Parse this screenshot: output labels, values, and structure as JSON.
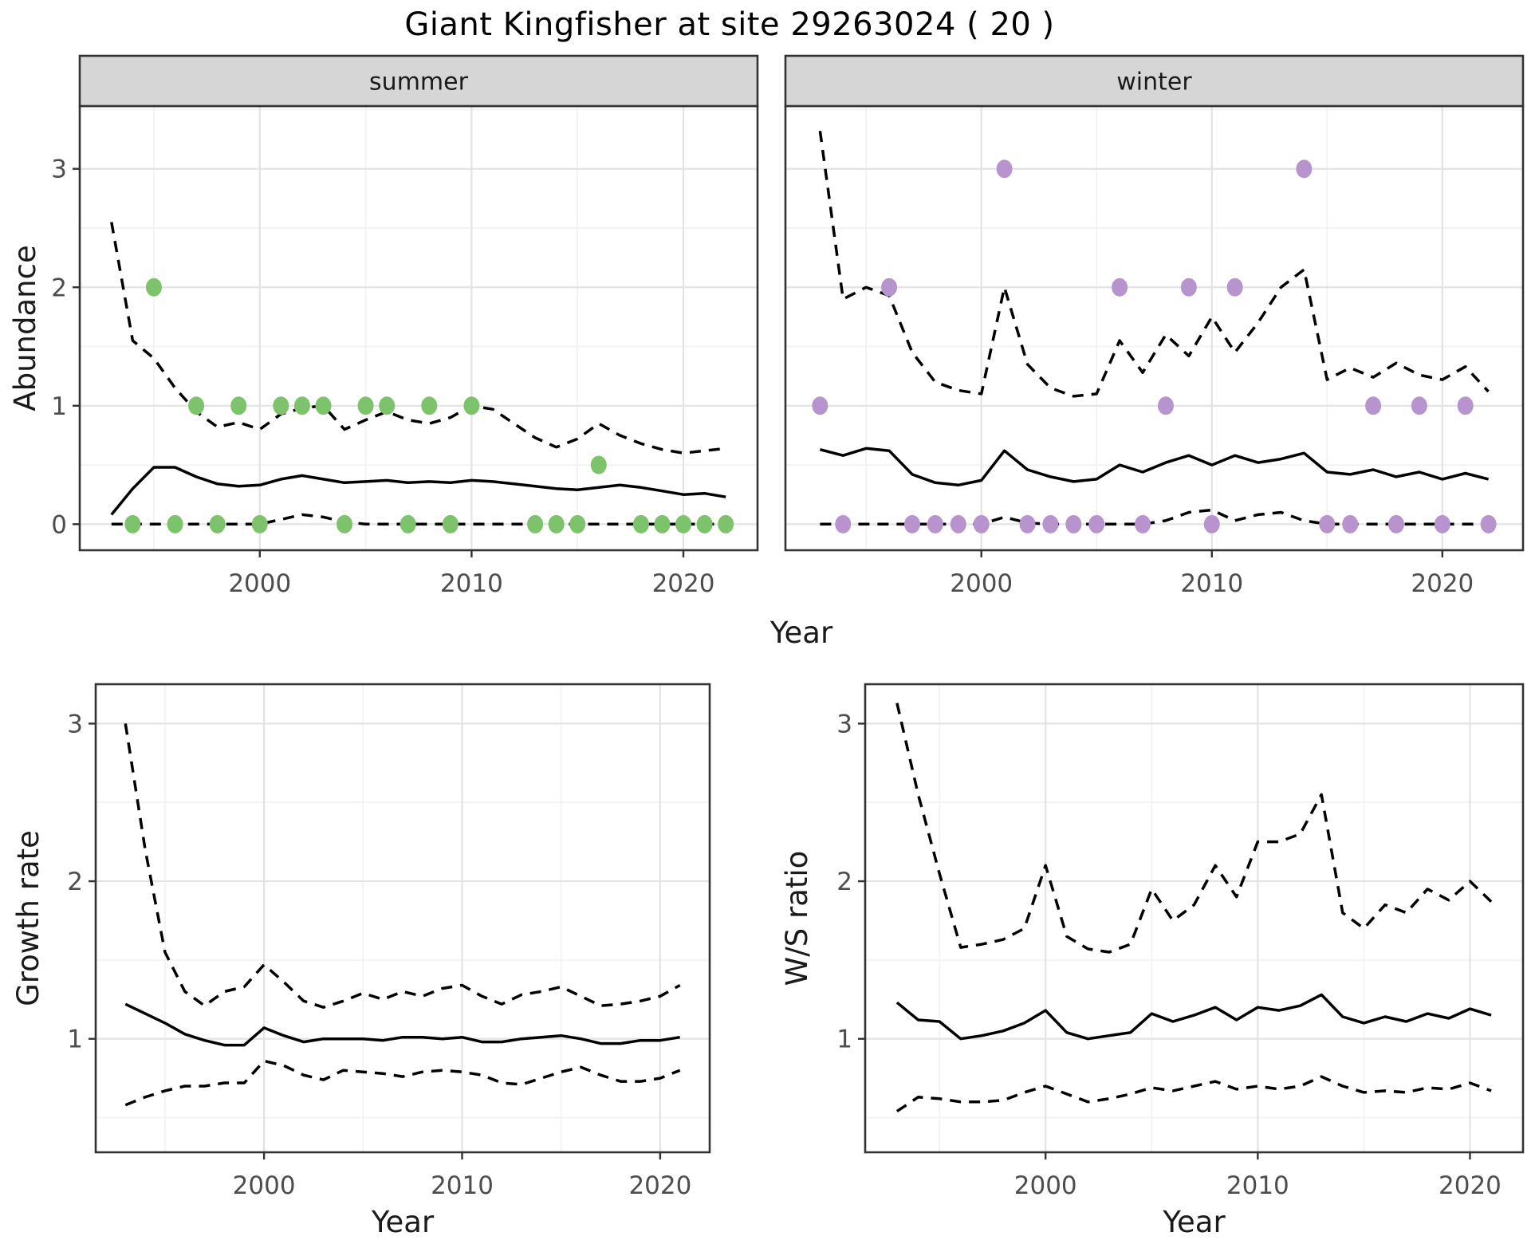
{
  "title": "Giant Kingfisher at site 29263024 ( 20 )",
  "colors": {
    "summer_point": "#7cc36b",
    "winter_point": "#b894cf",
    "line": "#000000",
    "grid_major": "#e3e3e3",
    "grid_minor": "#f1f1f1",
    "panel_border": "#333333",
    "strip_bg": "#d6d6d6",
    "tick_label": "#4d4d4d",
    "axis_title": "#1a1a1a",
    "panel_bg": "#ffffff"
  },
  "chart_data": [
    {
      "type": "line",
      "facet": "summer",
      "xlabel": "Year",
      "ylabel": "Abundance",
      "xlim": [
        1991.5,
        2023.5
      ],
      "ylim": [
        -0.22,
        3.53
      ],
      "xticks": [
        2000,
        2010,
        2020
      ],
      "xticks_minor": [
        1995,
        2005,
        2015
      ],
      "yticks": [
        0,
        1,
        2,
        3
      ],
      "yticks_minor": [
        0.5,
        1.5,
        2.5,
        3.5
      ],
      "grid": true,
      "legend": "none",
      "years": [
        1993,
        1994,
        1995,
        1996,
        1997,
        1998,
        1999,
        2000,
        2001,
        2002,
        2003,
        2004,
        2005,
        2006,
        2007,
        2008,
        2009,
        2010,
        2011,
        2012,
        2013,
        2014,
        2015,
        2016,
        2017,
        2018,
        2019,
        2020,
        2021,
        2022
      ],
      "series": [
        {
          "name": "mean_abundance",
          "style": "solid",
          "values": [
            0.08,
            0.3,
            0.48,
            0.48,
            0.4,
            0.34,
            0.32,
            0.33,
            0.38,
            0.41,
            0.38,
            0.35,
            0.36,
            0.37,
            0.35,
            0.36,
            0.35,
            0.37,
            0.36,
            0.34,
            0.32,
            0.3,
            0.29,
            0.31,
            0.33,
            0.31,
            0.28,
            0.25,
            0.26,
            0.23
          ]
        },
        {
          "name": "upper_credible_interval",
          "style": "dashed",
          "values": [
            2.55,
            1.55,
            1.4,
            1.15,
            0.95,
            0.82,
            0.86,
            0.8,
            0.93,
            0.98,
            1.0,
            0.8,
            0.88,
            0.95,
            0.88,
            0.85,
            0.9,
            1.0,
            0.97,
            0.85,
            0.73,
            0.65,
            0.72,
            0.85,
            0.75,
            0.68,
            0.63,
            0.6,
            0.62,
            0.64
          ]
        },
        {
          "name": "lower_credible_interval",
          "style": "dashed",
          "values": [
            0,
            0,
            0,
            0,
            0,
            0,
            0,
            0,
            0.04,
            0.08,
            0.06,
            0.02,
            0,
            0,
            0,
            0,
            0,
            0,
            0,
            0,
            0,
            0,
            0,
            0,
            0,
            0,
            0,
            0,
            0,
            0
          ]
        }
      ],
      "points": {
        "name": "observed_counts_summer",
        "color": "#7cc36b",
        "x": [
          1994,
          1995,
          1996,
          1997,
          1998,
          1999,
          2000,
          2001,
          2002,
          2003,
          2004,
          2005,
          2006,
          2007,
          2008,
          2009,
          2010,
          2013,
          2014,
          2015,
          2016,
          2018,
          2019,
          2020,
          2021,
          2022
        ],
        "y": [
          0,
          2,
          0,
          1,
          0,
          1,
          0,
          1,
          1,
          1,
          0,
          1,
          1,
          0,
          1,
          0,
          1,
          0,
          0,
          0,
          0.5,
          0,
          0,
          0,
          0,
          0
        ]
      }
    },
    {
      "type": "line",
      "facet": "winter",
      "xlabel": "Year",
      "ylabel": "Abundance",
      "xlim": [
        1991.5,
        2023.5
      ],
      "ylim": [
        -0.22,
        3.53
      ],
      "xticks": [
        2000,
        2010,
        2020
      ],
      "xticks_minor": [
        1995,
        2005,
        2015
      ],
      "yticks": [
        0,
        1,
        2,
        3
      ],
      "yticks_minor": [
        0.5,
        1.5,
        2.5,
        3.5
      ],
      "grid": true,
      "legend": "none",
      "years": [
        1993,
        1994,
        1995,
        1996,
        1997,
        1998,
        1999,
        2000,
        2001,
        2002,
        2003,
        2004,
        2005,
        2006,
        2007,
        2008,
        2009,
        2010,
        2011,
        2012,
        2013,
        2014,
        2015,
        2016,
        2017,
        2018,
        2019,
        2020,
        2021,
        2022
      ],
      "series": [
        {
          "name": "mean_abundance",
          "style": "solid",
          "values": [
            0.63,
            0.58,
            0.64,
            0.62,
            0.42,
            0.35,
            0.33,
            0.37,
            0.62,
            0.46,
            0.4,
            0.36,
            0.38,
            0.5,
            0.44,
            0.52,
            0.58,
            0.5,
            0.58,
            0.52,
            0.55,
            0.6,
            0.44,
            0.42,
            0.46,
            0.4,
            0.44,
            0.38,
            0.43,
            0.38
          ]
        },
        {
          "name": "upper_credible_interval",
          "style": "dashed",
          "values": [
            3.32,
            1.9,
            2.0,
            1.93,
            1.45,
            1.2,
            1.13,
            1.1,
            2.0,
            1.35,
            1.15,
            1.08,
            1.1,
            1.55,
            1.28,
            1.6,
            1.42,
            1.75,
            1.45,
            1.7,
            2.0,
            2.15,
            1.22,
            1.32,
            1.24,
            1.36,
            1.26,
            1.22,
            1.33,
            1.12
          ]
        },
        {
          "name": "lower_credible_interval",
          "style": "dashed",
          "values": [
            0,
            0,
            0,
            0,
            0,
            0,
            0,
            0,
            0.06,
            0.01,
            0,
            0,
            0,
            0,
            0,
            0.03,
            0.1,
            0.12,
            0.03,
            0.08,
            0.1,
            0.03,
            0,
            0,
            0,
            0,
            0,
            0,
            0,
            0
          ]
        }
      ],
      "points": {
        "name": "observed_counts_winter",
        "color": "#b894cf",
        "x": [
          1993,
          1994,
          1996,
          1997,
          1998,
          1999,
          2000,
          2001,
          2002,
          2003,
          2004,
          2005,
          2006,
          2007,
          2008,
          2009,
          2010,
          2011,
          2014,
          2015,
          2016,
          2017,
          2018,
          2019,
          2020,
          2021,
          2022
        ],
        "y": [
          1,
          0,
          2,
          0,
          0,
          0,
          0,
          3,
          0,
          0,
          0,
          0,
          2,
          0,
          1,
          2,
          0,
          2,
          3,
          0,
          0,
          1,
          0,
          1,
          0,
          1,
          0
        ]
      }
    },
    {
      "type": "line",
      "facet": "",
      "xlabel": "Year",
      "ylabel": "Growth rate",
      "xlim": [
        1991.5,
        2022.5
      ],
      "ylim": [
        0.28,
        3.25
      ],
      "xticks": [
        2000,
        2010,
        2020
      ],
      "xticks_minor": [
        1995,
        2005,
        2015
      ],
      "yticks": [
        1,
        2,
        3
      ],
      "yticks_minor": [
        0.5,
        1.5,
        2.5
      ],
      "grid": true,
      "legend": "none",
      "years": [
        1993,
        1994,
        1995,
        1996,
        1997,
        1998,
        1999,
        2000,
        2001,
        2002,
        2003,
        2004,
        2005,
        2006,
        2007,
        2008,
        2009,
        2010,
        2011,
        2012,
        2013,
        2014,
        2015,
        2016,
        2017,
        2018,
        2019,
        2020,
        2021
      ],
      "series": [
        {
          "name": "mean_growth_rate",
          "style": "solid",
          "values": [
            1.22,
            1.16,
            1.1,
            1.03,
            0.99,
            0.96,
            0.96,
            1.07,
            1.02,
            0.98,
            1.0,
            1.0,
            1.0,
            0.99,
            1.01,
            1.01,
            1.0,
            1.01,
            0.98,
            0.98,
            1.0,
            1.01,
            1.02,
            1.0,
            0.97,
            0.97,
            0.99,
            0.99,
            1.01
          ]
        },
        {
          "name": "upper_credible_interval",
          "style": "dashed",
          "values": [
            3.0,
            2.2,
            1.55,
            1.3,
            1.21,
            1.3,
            1.33,
            1.47,
            1.36,
            1.24,
            1.2,
            1.24,
            1.29,
            1.25,
            1.3,
            1.27,
            1.32,
            1.34,
            1.27,
            1.22,
            1.28,
            1.3,
            1.33,
            1.27,
            1.21,
            1.22,
            1.24,
            1.27,
            1.34
          ]
        },
        {
          "name": "lower_credible_interval",
          "style": "dashed",
          "values": [
            0.58,
            0.63,
            0.67,
            0.7,
            0.7,
            0.72,
            0.72,
            0.86,
            0.83,
            0.77,
            0.74,
            0.8,
            0.79,
            0.78,
            0.76,
            0.79,
            0.8,
            0.79,
            0.77,
            0.72,
            0.71,
            0.75,
            0.79,
            0.82,
            0.77,
            0.73,
            0.73,
            0.75,
            0.8
          ]
        }
      ],
      "points": null
    },
    {
      "type": "line",
      "facet": "",
      "xlabel": "Year",
      "ylabel": "W/S ratio",
      "xlim": [
        1991.5,
        2022.5
      ],
      "ylim": [
        0.28,
        3.25
      ],
      "xticks": [
        2000,
        2010,
        2020
      ],
      "xticks_minor": [
        1995,
        2005,
        2015
      ],
      "yticks": [
        1,
        2,
        3
      ],
      "yticks_minor": [
        0.5,
        1.5,
        2.5
      ],
      "grid": true,
      "legend": "none",
      "years": [
        1993,
        1994,
        1995,
        1996,
        1997,
        1998,
        1999,
        2000,
        2001,
        2002,
        2003,
        2004,
        2005,
        2006,
        2007,
        2008,
        2009,
        2010,
        2011,
        2012,
        2013,
        2014,
        2015,
        2016,
        2017,
        2018,
        2019,
        2020,
        2021
      ],
      "series": [
        {
          "name": "mean_ws_ratio",
          "style": "solid",
          "values": [
            1.23,
            1.12,
            1.11,
            1.0,
            1.02,
            1.05,
            1.1,
            1.18,
            1.04,
            1.0,
            1.02,
            1.04,
            1.16,
            1.11,
            1.15,
            1.2,
            1.12,
            1.2,
            1.18,
            1.21,
            1.28,
            1.14,
            1.1,
            1.14,
            1.11,
            1.16,
            1.13,
            1.19,
            1.15
          ]
        },
        {
          "name": "upper_credible_interval",
          "style": "dashed",
          "values": [
            3.13,
            2.55,
            2.05,
            1.58,
            1.6,
            1.63,
            1.7,
            2.1,
            1.65,
            1.57,
            1.55,
            1.6,
            1.95,
            1.75,
            1.85,
            2.1,
            1.9,
            2.25,
            2.25,
            2.3,
            2.55,
            1.8,
            1.7,
            1.85,
            1.8,
            1.95,
            1.88,
            2.0,
            1.87
          ]
        },
        {
          "name": "lower_credible_interval",
          "style": "dashed",
          "values": [
            0.54,
            0.63,
            0.62,
            0.6,
            0.6,
            0.61,
            0.66,
            0.7,
            0.65,
            0.6,
            0.62,
            0.65,
            0.69,
            0.67,
            0.7,
            0.73,
            0.68,
            0.7,
            0.68,
            0.7,
            0.76,
            0.7,
            0.66,
            0.67,
            0.66,
            0.69,
            0.68,
            0.72,
            0.67
          ]
        }
      ],
      "points": null
    }
  ]
}
